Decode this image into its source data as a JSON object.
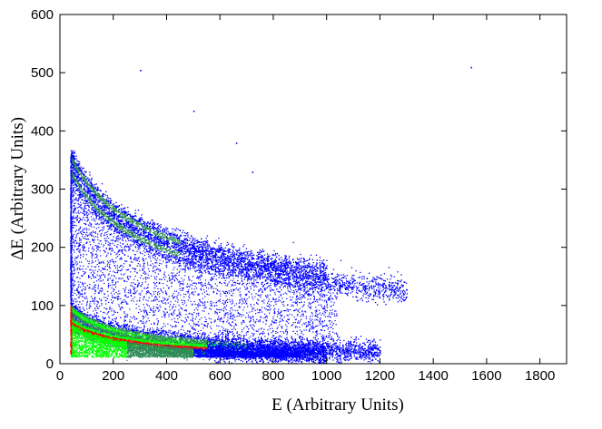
{
  "chart_data": {
    "type": "heatmap",
    "title": "",
    "xlabel": "E (Arbitrary Units)",
    "ylabel": "ΔE (Arbitrary Units)",
    "xlim": [
      0,
      1900
    ],
    "ylim": [
      0,
      600
    ],
    "x_ticks": [
      "0",
      "200",
      "400",
      "600",
      "800",
      "1000",
      "1200",
      "1400",
      "1600",
      "1800"
    ],
    "y_ticks": [
      "0",
      "100",
      "200",
      "300",
      "400",
      "500",
      "600"
    ],
    "grid": false,
    "legend": "none",
    "colormap": [
      "#0000ff",
      "#2e8b57",
      "#00ff00",
      "#ff0000"
    ],
    "bands": [
      {
        "x_start": 40,
        "x_end": 1000,
        "dE_at_40": 355,
        "dE_at_1000": 158,
        "intensity": "medium"
      },
      {
        "x_start": 40,
        "x_end": 1300,
        "dE_at_40": 330,
        "dE_at_1000": 140,
        "intensity": "medium"
      },
      {
        "x_start": 40,
        "x_end": 1200,
        "dE_at_40": 95,
        "dE_at_1000": 24,
        "intensity": "high"
      },
      {
        "x_start": 40,
        "x_end": 1000,
        "dE_at_40": 70,
        "dE_at_1000": 18,
        "intensity": "very-high"
      }
    ],
    "isolated_points": [
      {
        "x": 300,
        "y": 505
      },
      {
        "x": 1540,
        "y": 510
      },
      {
        "x": 500,
        "y": 435
      },
      {
        "x": 660,
        "y": 380
      },
      {
        "x": 720,
        "y": 330
      }
    ]
  }
}
